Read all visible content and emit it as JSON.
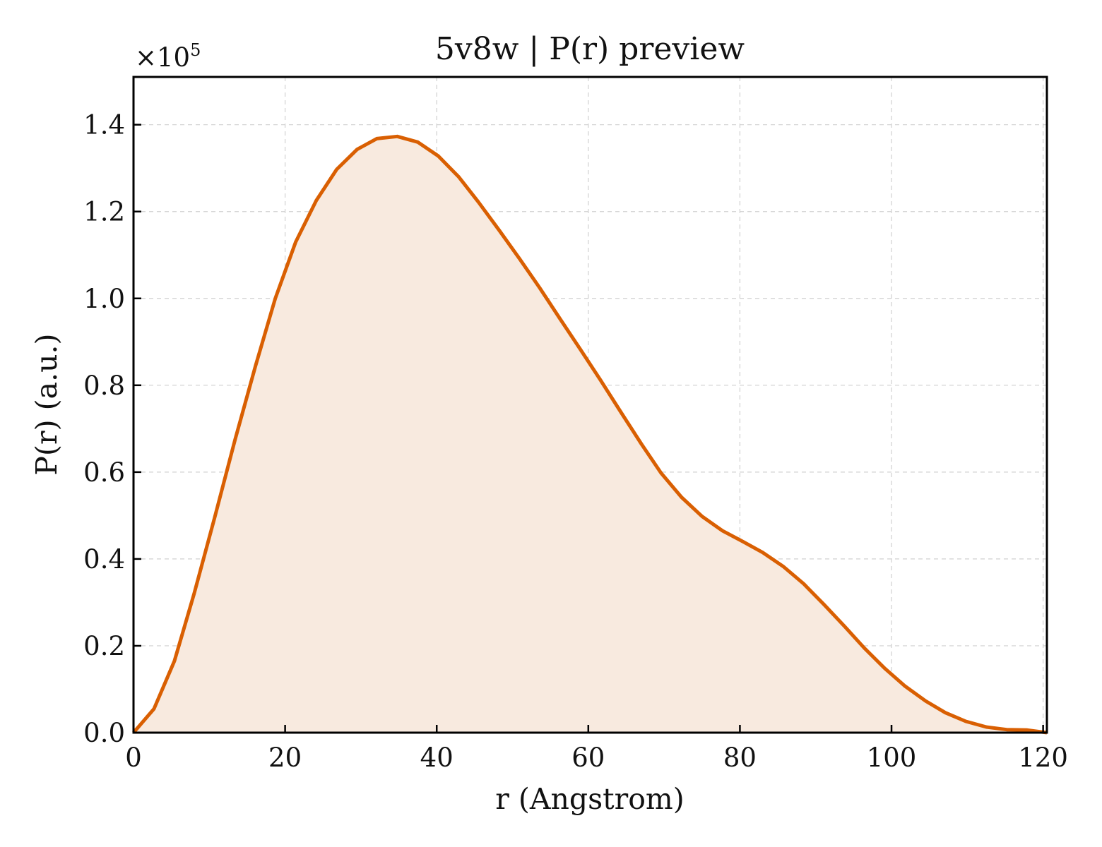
{
  "chart_data": {
    "type": "area",
    "title": "5v8w | P(r) preview",
    "xlabel": "r (Angstrom)",
    "ylabel": "P(r) (a.u.)",
    "y_multiplier": "×10",
    "y_multiplier_exponent": "5",
    "xlim": [
      0,
      120.5
    ],
    "ylim": [
      0,
      1.51
    ],
    "x_ticks": [
      0,
      20,
      40,
      60,
      80,
      100,
      120
    ],
    "x_tick_labels": [
      "0",
      "20",
      "40",
      "60",
      "80",
      "100",
      "120"
    ],
    "y_ticks": [
      0,
      0.2,
      0.4,
      0.6,
      0.8,
      1.0,
      1.2,
      1.4
    ],
    "y_tick_labels": [
      "0.0",
      "0.2",
      "0.4",
      "0.6",
      "0.8",
      "1.0",
      "1.2",
      "1.4"
    ],
    "grid": true,
    "colors": {
      "line": "#d95f02",
      "fill": "#f8eadf"
    },
    "series": [
      {
        "x": [
          0,
          2.7,
          5.4,
          8.0,
          10.7,
          13.4,
          16.1,
          18.7,
          21.4,
          24.1,
          26.8,
          29.5,
          32.1,
          34.8,
          37.5,
          40.2,
          42.9,
          45.5,
          48.2,
          50.9,
          53.6,
          56.2,
          58.9,
          61.6,
          64.3,
          67.0,
          69.6,
          72.3,
          75.0,
          77.7,
          80.4,
          83.0,
          85.7,
          88.4,
          91.1,
          93.8,
          96.4,
          99.1,
          101.8,
          104.5,
          107.1,
          109.8,
          112.5,
          115.2,
          117.9,
          120.5
        ],
        "y": [
          0.0,
          0.055,
          0.165,
          0.32,
          0.495,
          0.675,
          0.845,
          1.0,
          1.13,
          1.225,
          1.297,
          1.343,
          1.368,
          1.373,
          1.36,
          1.328,
          1.28,
          1.222,
          1.158,
          1.092,
          1.024,
          0.955,
          0.884,
          0.812,
          0.738,
          0.665,
          0.598,
          0.542,
          0.498,
          0.465,
          0.44,
          0.415,
          0.383,
          0.343,
          0.295,
          0.245,
          0.195,
          0.148,
          0.107,
          0.073,
          0.046,
          0.026,
          0.013,
          0.007,
          0.006,
          0.0
        ]
      }
    ]
  }
}
